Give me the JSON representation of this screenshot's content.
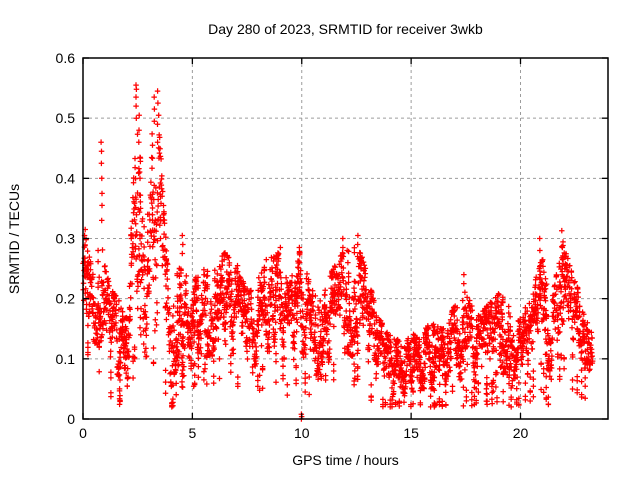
{
  "chart_data": {
    "type": "scatter",
    "title": "Day 280 of 2023, SRMTID for receiver 3wkb",
    "xlabel": "GPS time / hours",
    "ylabel": "SRMTID / TECUs",
    "xlim": [
      0,
      24
    ],
    "ylim": [
      0,
      0.6
    ],
    "xticks": [
      0,
      5,
      10,
      15,
      20
    ],
    "xtick_labels": [
      "0",
      "5",
      "10",
      "15",
      "20"
    ],
    "yticks": [
      0,
      0.1,
      0.2,
      0.3,
      0.4,
      0.5,
      0.6
    ],
    "ytick_labels": [
      "0",
      "0.1",
      "0.2",
      "0.3",
      "0.4",
      "0.5",
      "0.6"
    ],
    "grid": true,
    "grid_style": "dashed",
    "legend": "none",
    "marker": {
      "shape": "plus",
      "color": "#ff0000",
      "size": 5.5
    },
    "colors": {
      "marker": "#ff0000",
      "grid": "#9c9c9c",
      "border": "#000000",
      "text": "#000000"
    },
    "series_name": "SRMTID",
    "sampling": {
      "t_start": 0,
      "t_end": 23.3,
      "points_per_minute": 2,
      "seed": 280
    },
    "band_profile": [
      [
        0.0,
        0.17,
        0.32
      ],
      [
        0.3,
        0.15,
        0.3
      ],
      [
        0.6,
        0.12,
        0.28
      ],
      [
        0.9,
        0.13,
        0.3
      ],
      [
        1.2,
        0.09,
        0.22
      ],
      [
        1.6,
        0.07,
        0.2
      ],
      [
        2.0,
        0.06,
        0.17
      ],
      [
        2.25,
        0.1,
        0.35
      ],
      [
        2.45,
        0.15,
        0.5
      ],
      [
        2.65,
        0.13,
        0.44
      ],
      [
        2.9,
        0.1,
        0.33
      ],
      [
        3.2,
        0.14,
        0.5
      ],
      [
        3.45,
        0.15,
        0.52
      ],
      [
        3.7,
        0.1,
        0.35
      ],
      [
        3.95,
        0.04,
        0.22
      ],
      [
        4.3,
        0.08,
        0.24
      ],
      [
        4.6,
        0.1,
        0.29
      ],
      [
        5.0,
        0.1,
        0.23
      ],
      [
        5.5,
        0.11,
        0.25
      ],
      [
        6.0,
        0.1,
        0.26
      ],
      [
        6.5,
        0.12,
        0.28
      ],
      [
        7.0,
        0.1,
        0.25
      ],
      [
        7.6,
        0.06,
        0.21
      ],
      [
        8.1,
        0.09,
        0.24
      ],
      [
        8.5,
        0.11,
        0.27
      ],
      [
        9.0,
        0.11,
        0.28
      ],
      [
        9.4,
        0.07,
        0.22
      ],
      [
        9.9,
        0.12,
        0.28
      ],
      [
        10.3,
        0.08,
        0.24
      ],
      [
        10.7,
        0.06,
        0.2
      ],
      [
        11.1,
        0.09,
        0.23
      ],
      [
        11.6,
        0.1,
        0.26
      ],
      [
        12.0,
        0.11,
        0.29
      ],
      [
        12.5,
        0.1,
        0.3
      ],
      [
        13.0,
        0.08,
        0.24
      ],
      [
        13.5,
        0.05,
        0.17
      ],
      [
        14.0,
        0.04,
        0.14
      ],
      [
        14.5,
        0.03,
        0.13
      ],
      [
        15.0,
        0.05,
        0.14
      ],
      [
        15.5,
        0.05,
        0.15
      ],
      [
        16.0,
        0.05,
        0.16
      ],
      [
        16.5,
        0.04,
        0.15
      ],
      [
        17.0,
        0.06,
        0.19
      ],
      [
        17.5,
        0.06,
        0.22
      ],
      [
        18.0,
        0.06,
        0.17
      ],
      [
        18.5,
        0.07,
        0.19
      ],
      [
        19.0,
        0.08,
        0.21
      ],
      [
        19.5,
        0.07,
        0.19
      ],
      [
        20.0,
        0.06,
        0.17
      ],
      [
        20.5,
        0.08,
        0.21
      ],
      [
        21.0,
        0.1,
        0.27
      ],
      [
        21.4,
        0.06,
        0.19
      ],
      [
        21.9,
        0.12,
        0.3
      ],
      [
        22.3,
        0.1,
        0.25
      ],
      [
        22.7,
        0.08,
        0.21
      ],
      [
        23.0,
        0.08,
        0.19
      ],
      [
        23.3,
        0.08,
        0.17
      ]
    ],
    "outlier_clusters": [
      [
        0.1,
        [
          0.305,
          0.315
        ]
      ],
      [
        0.85,
        [
          0.33,
          0.355,
          0.375,
          0.4,
          0.425,
          0.445,
          0.46
        ]
      ],
      [
        2.42,
        [
          0.5,
          0.52,
          0.535,
          0.548,
          0.555
        ]
      ],
      [
        2.55,
        [
          0.46,
          0.48,
          0.505
        ]
      ],
      [
        2.62,
        [
          0.3,
          0.35,
          0.4,
          0.435
        ]
      ],
      [
        3.28,
        [
          0.495,
          0.515,
          0.535
        ]
      ],
      [
        3.42,
        [
          0.46,
          0.49,
          0.525,
          0.545
        ]
      ],
      [
        3.55,
        [
          0.3,
          0.335,
          0.37
        ]
      ],
      [
        4.55,
        [
          0.275,
          0.29,
          0.305
        ]
      ],
      [
        6.45,
        [
          0.265,
          0.275
        ]
      ],
      [
        7.05,
        [
          0.245,
          0.255
        ]
      ],
      [
        8.4,
        [
          0.265
        ]
      ],
      [
        9.0,
        [
          0.285
        ]
      ],
      [
        9.9,
        [
          0.26,
          0.273,
          0.285
        ]
      ],
      [
        10.0,
        [
          0.0,
          0.004,
          0.008
        ]
      ],
      [
        11.9,
        [
          0.27,
          0.285,
          0.3
        ]
      ],
      [
        12.1,
        [
          0.26,
          0.28
        ]
      ],
      [
        12.55,
        [
          0.27,
          0.29,
          0.305
        ]
      ],
      [
        17.4,
        [
          0.225,
          0.24
        ]
      ],
      [
        20.9,
        [
          0.24,
          0.26,
          0.28,
          0.3
        ]
      ],
      [
        21.9,
        [
          0.245,
          0.265,
          0.285,
          0.313
        ]
      ],
      [
        22.05,
        [
          0.22,
          0.25,
          0.27
        ]
      ]
    ]
  }
}
